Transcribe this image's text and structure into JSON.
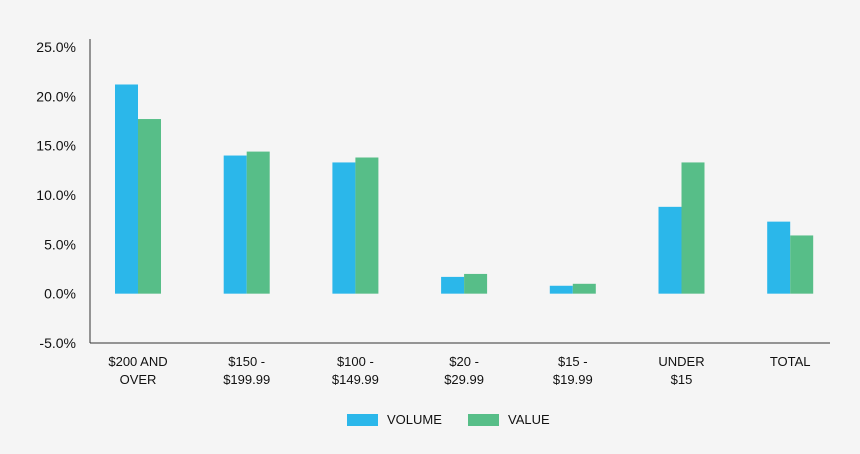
{
  "chart_data": {
    "type": "bar",
    "categories": [
      [
        "$200 AND",
        "OVER"
      ],
      [
        "$150 -",
        "$199.99"
      ],
      [
        "$100 -",
        "$149.99"
      ],
      [
        "$20 -",
        "$29.99"
      ],
      [
        "$15 -",
        "$19.99"
      ],
      [
        "UNDER",
        "$15"
      ],
      [
        "TOTAL"
      ]
    ],
    "series": [
      {
        "name": "VOLUME",
        "color": "#2bb7ea",
        "values": [
          21.2,
          14.0,
          13.3,
          1.7,
          0.8,
          8.8,
          7.3
        ]
      },
      {
        "name": "VALUE",
        "color": "#57be88",
        "values": [
          17.7,
          14.4,
          13.8,
          2.0,
          1.0,
          13.3,
          5.9
        ]
      }
    ],
    "ylim": [
      -5,
      25
    ],
    "yticks": [
      "25.0%",
      "20.0%",
      "15.0%",
      "10.0%",
      "5.0%",
      "0.0%",
      "-5.0%"
    ],
    "ytick_values": [
      25,
      20,
      15,
      10,
      5,
      0,
      -5
    ],
    "legend_position": "bottom-center",
    "grid": false,
    "title": "",
    "xlabel": "",
    "ylabel": ""
  }
}
